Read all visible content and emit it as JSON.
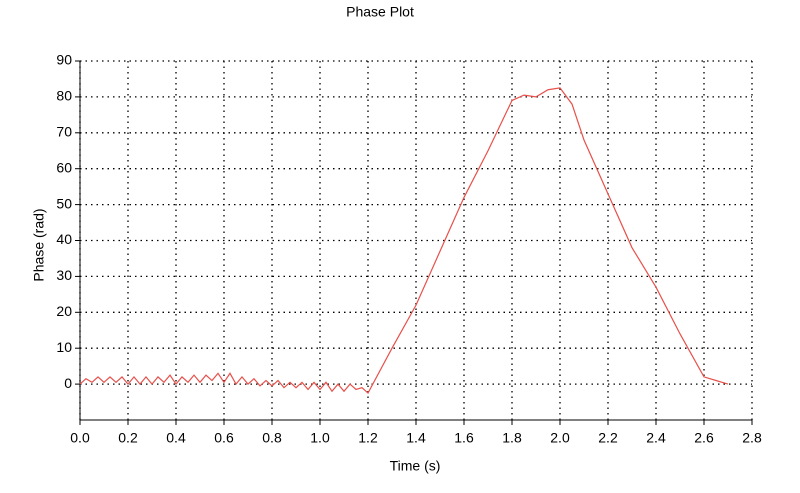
{
  "chart_data": {
    "type": "line",
    "title": "Phase Plot",
    "x_label": "Time (s)",
    "y_label": "Phase (rad)",
    "color": "#e8504a",
    "grid": true,
    "x": [
      0,
      0.025,
      0.05,
      0.075,
      0.1,
      0.125,
      0.15,
      0.175,
      0.2,
      0.225,
      0.25,
      0.275,
      0.3,
      0.325,
      0.35,
      0.375,
      0.4,
      0.425,
      0.45,
      0.475,
      0.5,
      0.525,
      0.55,
      0.575,
      0.6,
      0.625,
      0.65,
      0.675,
      0.7,
      0.725,
      0.75,
      0.775,
      0.8,
      0.825,
      0.85,
      0.875,
      0.9,
      0.925,
      0.95,
      0.975,
      1,
      1.025,
      1.05,
      1.075,
      1.1,
      1.125,
      1.15,
      1.175,
      1.2,
      1.3,
      1.4,
      1.5,
      1.6,
      1.7,
      1.8,
      1.85,
      1.9,
      1.95,
      2.0,
      2.05,
      2.1,
      2.2,
      2.3,
      2.4,
      2.5,
      2.6,
      2.65,
      2.7
    ],
    "values": [
      0,
      1.5,
      0.5,
      2,
      0.5,
      2,
      0.5,
      2,
      0,
      2,
      0,
      2,
      0,
      2,
      0.5,
      2.5,
      0,
      2,
      0.5,
      2.5,
      0.5,
      2.5,
      1,
      3,
      0.5,
      3,
      0,
      2,
      0,
      1.5,
      -0.5,
      1,
      -0.5,
      1,
      -1,
      0.5,
      -1,
      0.5,
      -1.5,
      0.5,
      -1.5,
      0.5,
      -2,
      0,
      -2,
      0,
      -1.5,
      -1,
      -2.5,
      10,
      22,
      37,
      52,
      65,
      79,
      80.5,
      80,
      82,
      82.5,
      78,
      68,
      53,
      38,
      27,
      14,
      2,
      1,
      0
    ],
    "xlim": [
      0,
      2.8
    ],
    "ylim": [
      -10,
      90
    ],
    "xticks": [
      {
        "value": 0,
        "label": "0.0"
      },
      0.2,
      0.4,
      0.6,
      0.8,
      {
        "value": 1,
        "label": "1.0"
      },
      1.2,
      1.4,
      1.6,
      1.8,
      {
        "value": 2,
        "label": "2.0"
      },
      2.2,
      2.4,
      2.6,
      2.8
    ],
    "yticks": [
      0,
      10,
      20,
      30,
      40,
      50,
      60,
      70,
      80,
      90
    ]
  }
}
